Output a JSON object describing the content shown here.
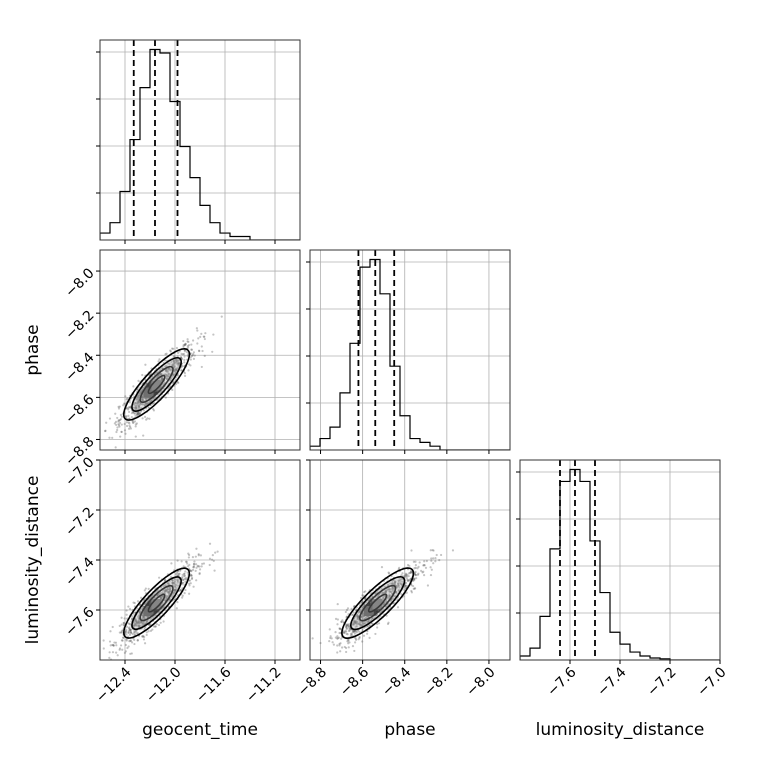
{
  "figure": {
    "type": "corner-plot",
    "parameters": [
      "geocent_time",
      "phase",
      "luminosity_distance"
    ],
    "colors": {
      "hist": "#000000",
      "grid": "#b0b0b0",
      "quantile": "#000000",
      "scatter": "#555555"
    }
  },
  "chart_data": [
    {
      "type": "histogram",
      "parameter": "geocent_time",
      "grid": true,
      "xlim": [
        -12.6,
        -11.0
      ],
      "bin_edges": [
        -12.6,
        -12.52,
        -12.44,
        -12.36,
        -12.28,
        -12.2,
        -12.12,
        -12.04,
        -11.96,
        -11.88,
        -11.8,
        -11.72,
        -11.64,
        -11.56,
        -11.48,
        -11.4,
        -11.32,
        -11.24,
        -11.16,
        -11.08,
        -11.0
      ],
      "counts": [
        2,
        5,
        14,
        29,
        44,
        55,
        54,
        40,
        27,
        18,
        10,
        5,
        2,
        1,
        1,
        0,
        0,
        0,
        0,
        0
      ],
      "quantiles": [
        -12.33,
        -12.16,
        -11.98
      ],
      "x_ticks": [
        -12.4,
        -12.0,
        -11.6,
        -11.2
      ]
    },
    {
      "type": "histogram",
      "parameter": "phase",
      "grid": true,
      "xlim": [
        -8.85,
        -7.9
      ],
      "bin_edges": [
        -8.85,
        -8.8025,
        -8.755,
        -8.7075,
        -8.66,
        -8.6125,
        -8.565,
        -8.5175,
        -8.47,
        -8.4225,
        -8.375,
        -8.3275,
        -8.28,
        -8.2325,
        -8.185,
        -8.1375,
        -8.09,
        -8.0425,
        -7.995,
        -7.9475,
        -7.9
      ],
      "counts": [
        1,
        3,
        6,
        15,
        28,
        48,
        50,
        41,
        22,
        9,
        3,
        2,
        1,
        0,
        0,
        0,
        0,
        0,
        0,
        0
      ],
      "quantiles": [
        -8.62,
        -8.54,
        -8.45
      ],
      "x_ticks": [
        -8.8,
        -8.6,
        -8.4,
        -8.2,
        -8.0
      ]
    },
    {
      "type": "histogram",
      "parameter": "luminosity_distance",
      "grid": true,
      "xlim": [
        -7.8,
        -7.0
      ],
      "bin_edges": [
        -7.8,
        -7.76,
        -7.72,
        -7.68,
        -7.64,
        -7.6,
        -7.56,
        -7.52,
        -7.48,
        -7.44,
        -7.4,
        -7.36,
        -7.32,
        -7.28,
        -7.24,
        -7.2,
        -7.16,
        -7.12,
        -7.08,
        -7.04,
        -7.0
      ],
      "counts": [
        1,
        3,
        11,
        28,
        45,
        48,
        45,
        30,
        17,
        7,
        4,
        2,
        1,
        0.5,
        0.3,
        0,
        0,
        0,
        0,
        0
      ],
      "quantiles": [
        -7.64,
        -7.58,
        -7.5
      ],
      "x_ticks": [
        -7.6,
        -7.4,
        -7.2,
        -7.0
      ],
      "xlabel": "luminosity_distance"
    },
    {
      "type": "2d-density",
      "x": "geocent_time",
      "y": "phase",
      "grid": true,
      "xlim": [
        -12.6,
        -11.0
      ],
      "ylim": [
        -8.85,
        -7.9
      ],
      "center": [
        -12.18,
        -8.56
      ],
      "sd": [
        0.13,
        0.085
      ],
      "correlation": 0.85,
      "contour_sigmas": [
        0.5,
        1.0,
        1.5,
        2.0
      ],
      "x_ticks": [
        -12.4,
        -12.0,
        -11.6,
        -11.2
      ],
      "y_ticks": [
        -8.8,
        -8.6,
        -8.4,
        -8.2,
        -8.0
      ],
      "ylabel": "phase"
    },
    {
      "type": "2d-density",
      "x": "geocent_time",
      "y": "luminosity_distance",
      "grid": true,
      "xlim": [
        -12.6,
        -11.0
      ],
      "ylim": [
        -7.8,
        -7.0
      ],
      "center": [
        -12.18,
        -7.59
      ],
      "sd": [
        0.13,
        0.07
      ],
      "correlation": 0.85,
      "contour_sigmas": [
        0.5,
        1.0,
        1.5,
        2.0
      ],
      "x_ticks": [
        -12.4,
        -12.0,
        -11.6,
        -11.2
      ],
      "y_ticks": [
        -7.6,
        -7.4,
        -7.2,
        -7.0
      ],
      "xlabel": "geocent_time",
      "ylabel": "luminosity_distance"
    },
    {
      "type": "2d-density",
      "x": "phase",
      "y": "luminosity_distance",
      "grid": true,
      "xlim": [
        -8.85,
        -7.9
      ],
      "ylim": [
        -7.8,
        -7.0
      ],
      "center": [
        -8.55,
        -7.59
      ],
      "sd": [
        0.085,
        0.07
      ],
      "correlation": 0.85,
      "contour_sigmas": [
        0.5,
        1.0,
        1.5,
        2.0
      ],
      "x_ticks": [
        -8.8,
        -8.6,
        -8.4,
        -8.2,
        -8.0
      ],
      "y_ticks": [
        -7.6,
        -7.4,
        -7.2,
        -7.0
      ],
      "xlabel": "phase"
    }
  ]
}
